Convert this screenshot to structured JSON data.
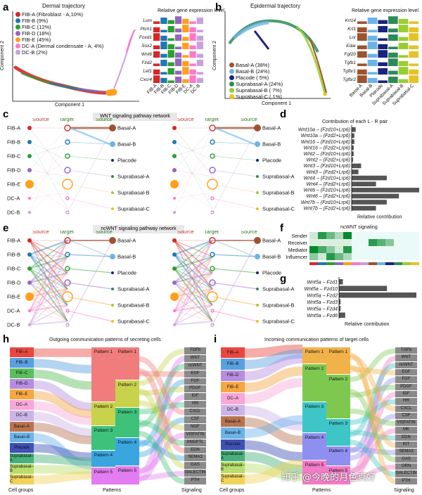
{
  "panels": {
    "a": "a",
    "b": "b",
    "c": "c",
    "d": "d",
    "e": "e",
    "f": "f",
    "g": "g",
    "h": "h",
    "i": "i"
  },
  "a": {
    "title": "Dermal trajectory",
    "xlabel": "Component 1",
    "ylabel": "Component 2",
    "legend": [
      {
        "label": "FIB-A (Fibroblast - A,10%)",
        "color": "#d62728"
      },
      {
        "label": "FIB-B (9%)",
        "color": "#1f77b4"
      },
      {
        "label": "FIB-C (12%)",
        "color": "#2ca02c"
      },
      {
        "label": "FIB-D (18%)",
        "color": "#9467bd"
      },
      {
        "label": "FIB-E (45%)",
        "color": "#ff9f1c"
      },
      {
        "label": "DC-A (Dermal condensate - A, 4%)",
        "color": "#ff77c8"
      },
      {
        "label": "DC-B (2%)",
        "color": "#c9a0dc"
      }
    ],
    "expr_title": "Relative gene expression level",
    "genes": [
      "Lum",
      "Ptch1",
      "Foxd1",
      "Sox2",
      "Wnt6",
      "Fzd2",
      "Lef1",
      "Cxcr4"
    ],
    "groups": [
      "FIB-A",
      "FIB-B",
      "FIB-C",
      "FIB-D",
      "FIB-E",
      "DC-A",
      "DC-B"
    ]
  },
  "b": {
    "title": "Epidermal trajectory",
    "xlabel": "Component 1",
    "ylabel": "Component 2",
    "legend": [
      {
        "label": "Basal-A (38%)",
        "color": "#a0522d"
      },
      {
        "label": "Basal-B (24%)",
        "color": "#6ab4e8"
      },
      {
        "label": "Placode ( 5%)",
        "color": "#1a237e"
      },
      {
        "label": "Suprabasal-A (24%)",
        "color": "#2e8b57"
      },
      {
        "label": "Suprabasal-B ( 7%)",
        "color": "#9acd32"
      },
      {
        "label": "Suprabasal-C ( 1%)",
        "color": "#e6c229"
      }
    ],
    "expr_title": "Relative gene expression level",
    "genes": [
      "Krt14",
      "Krt1",
      "Lor",
      "Edar",
      "Fgf20",
      "Tgfb1",
      "Tgfbr1",
      "Tgfbr2"
    ],
    "groups": [
      "Basal-A",
      "Basal-B",
      "Placode",
      "Suprabasal-A",
      "Suprabasal-B",
      "Suprabasal-C"
    ]
  },
  "c": {
    "title": "WNT signaling pathway network",
    "hdr_source": "Source",
    "hdr_target": "Target",
    "left_nodes": [
      "FIB-A",
      "FIB-B",
      "FIB-C",
      "FIB-D",
      "FIB-E",
      "DC-A",
      "DC-B"
    ],
    "right_nodes": [
      "Basal-A",
      "Basal-B",
      "Placode",
      "Suprabasal-A",
      "Suprabasal-B",
      "Suprabasal-C"
    ]
  },
  "d": {
    "title": "Contribution of each L - R pair",
    "xlabel": "Relative contribution",
    "pairs": [
      {
        "label": "Wnt10a – (Fzd10+Lrp6)",
        "value": 0.06
      },
      {
        "label": "Wnt10a – (Fzd2+Lrp6)",
        "value": 0.04
      },
      {
        "label": "Wnt16 – (Fzd10+Lrp6)",
        "value": 0.04
      },
      {
        "label": "Wnt16 – (Fzd2+Lrp6)",
        "value": 0.03
      },
      {
        "label": "Wnt2 – (Fzd10+Lrp6)",
        "value": 0.03
      },
      {
        "label": "Wnt2 – (Fzd2+Lrp6)",
        "value": 0.02
      },
      {
        "label": "Wnt3 – (Fzd10+Lrp6)",
        "value": 0.14
      },
      {
        "label": "Wnt3 – (Fzd2+Lrp6)",
        "value": 0.1
      },
      {
        "label": "Wnt4 – (Fzd10+Lrp6)",
        "value": 0.52
      },
      {
        "label": "Wnt4 – (Fzd2+Lrp6)",
        "value": 0.36
      },
      {
        "label": "Wnt6 – (Fzd10+Lrp6)",
        "value": 1.0
      },
      {
        "label": "Wnt6 – (Fzd2+Lrp6)",
        "value": 0.7
      },
      {
        "label": "Wnt7b – (Fzd10+Lrp6)",
        "value": 0.52
      },
      {
        "label": "Wnt7b – (Fzd2+Lrp6)",
        "value": 0.36
      }
    ]
  },
  "e": {
    "title": "ncWNT signaling pathway network",
    "hdr_source": "Source",
    "hdr_target": "Target",
    "left_nodes": [
      "FIB-A",
      "FIB-B",
      "FIB-C",
      "FIB-D",
      "FIB-E",
      "DC-A",
      "DC-B"
    ],
    "right_nodes": [
      "Basal-A",
      "Basal-B",
      "Placode",
      "Suprabasal-A",
      "Suprabasal-B",
      "Suprabasal-C"
    ]
  },
  "f": {
    "title": "ncWNT signaling",
    "rows": [
      "Sender",
      "Receiver",
      "Mediator",
      "Influencer"
    ]
  },
  "g": {
    "xlabel": "Relative contribution",
    "pairs": [
      {
        "label": "Wnt5a – Fzd1",
        "value": 0.05
      },
      {
        "label": "Wnt5a – Fzd10",
        "value": 0.62
      },
      {
        "label": "Wnt5a – Fzd2",
        "value": 1.0
      },
      {
        "label": "Wnt5a – Fzd3",
        "value": 0.02
      },
      {
        "label": "Wnt5a – Fzd4",
        "value": 0.02
      },
      {
        "label": "Wnt5a – Fzd6",
        "value": 0.08
      }
    ]
  },
  "h": {
    "title": "Outgoing communication patterns of secreting cells",
    "cell_groups_label": "Cell groups",
    "patterns_label": "Patterns",
    "signaling_label": "Signaling",
    "cells": [
      "FIB–A",
      "FIB–B",
      "FIB–C",
      "FIB–D",
      "FIB–E",
      "DC–A",
      "DC–B",
      "Basal–A",
      "Basal–B",
      "Placode",
      "Suprabasal–A",
      "Suprabasal–B",
      "Suprabasal–C"
    ],
    "patterns_left": [
      "Pattern 1",
      "Pattern 2",
      "Pattern 3",
      "Pattern 4",
      "Pattern 5"
    ],
    "patterns_right": [
      "Pattern 1",
      "Pattern 2",
      "Pattern 3",
      "Pattern 4",
      "Pattern 5"
    ],
    "signals": [
      "TGFb",
      "WNT",
      "ncWNT",
      "EGF",
      "FGF",
      "PDGF",
      "IGF",
      "HH",
      "CXCL",
      "CSF",
      "NGF",
      "VISFATIN",
      "ANGPTL",
      "EDN",
      "SEMA3",
      "GAS",
      "GALECTIN",
      "PTH"
    ]
  },
  "i": {
    "title": "Incoming communication patterns of target cells",
    "cell_groups_label": "Cell groups",
    "patterns_label": "Patterns",
    "signaling_label": "Signaling",
    "cells": [
      "FIB–A",
      "FIB–B",
      "FIB–D",
      "FIB–E",
      "DC–A",
      "DC–B",
      "Basal–A",
      "Basal–B",
      "Placode",
      "Suprabasal–A",
      "Suprabasal–B",
      "Suprabasal–C"
    ],
    "patterns_left": [
      "Pattern 1",
      "Pattern 2",
      "Pattern 3",
      "Pattern 4",
      "Pattern 5"
    ],
    "patterns_right": [
      "Pattern 1",
      "Pattern 2",
      "Pattern 3",
      "Pattern 4",
      "Pattern 5"
    ],
    "signals": [
      "TGFb",
      "WNT",
      "ncWNT",
      "EGF",
      "FGF",
      "PDGF",
      "IGF",
      "HH",
      "CXCL",
      "CSF",
      "VISFATIN",
      "MK",
      "EDN",
      "KIT",
      "SEMA3",
      "GAS",
      "GRN",
      "GALECTIN",
      "PTH"
    ]
  },
  "watermark": "知乎 @今晚的月色真好"
}
